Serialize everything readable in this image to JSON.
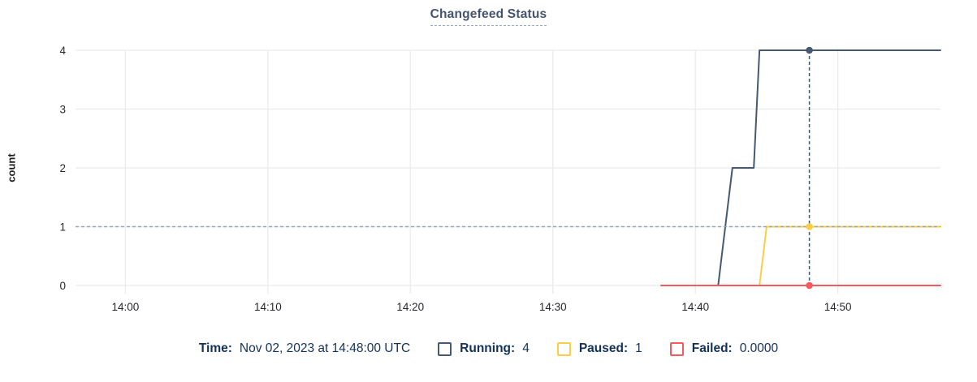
{
  "title": "Changefeed Status",
  "legend": {
    "time_label": "Time:",
    "time_value": "Nov 02, 2023 at 14:48:00 UTC",
    "items": [
      {
        "label": "Running:",
        "value": "4",
        "color": "#475872"
      },
      {
        "label": "Paused:",
        "value": "1",
        "color": "#ffcd44"
      },
      {
        "label": "Failed:",
        "value": "0.0000",
        "color": "#f8595f"
      }
    ]
  },
  "chart_data": {
    "type": "line",
    "title": "Changefeed Status",
    "xlabel": "",
    "ylabel": "count",
    "ylim": [
      0,
      4
    ],
    "y_ticks": [
      0,
      1,
      2,
      3,
      4
    ],
    "xlim_minutes_after_1400": [
      -3.5,
      57.2
    ],
    "x_ticks": [
      {
        "minutes": 0,
        "label": "14:00"
      },
      {
        "minutes": 10,
        "label": "14:10"
      },
      {
        "minutes": 20,
        "label": "14:20"
      },
      {
        "minutes": 30,
        "label": "14:30"
      },
      {
        "minutes": 40,
        "label": "14:40"
      },
      {
        "minutes": 50,
        "label": "14:50"
      }
    ],
    "grid": true,
    "legend_position": "bottom",
    "series": [
      {
        "name": "Running",
        "color": "#475872",
        "points": [
          [
            37.6,
            0
          ],
          [
            41.6,
            0
          ],
          [
            42.6,
            2
          ],
          [
            44.1,
            2
          ],
          [
            44.5,
            4
          ],
          [
            57.2,
            4
          ]
        ]
      },
      {
        "name": "Paused",
        "color": "#ffcd44",
        "points": [
          [
            37.6,
            0
          ],
          [
            44.5,
            0
          ],
          [
            45.0,
            1
          ],
          [
            57.2,
            1
          ]
        ]
      },
      {
        "name": "Failed",
        "color": "#f8595f",
        "points": [
          [
            37.6,
            0
          ],
          [
            57.2,
            0
          ]
        ]
      }
    ],
    "hover": {
      "time_label": "Nov 02, 2023 at 14:48:00 UTC",
      "x_minutes": 48,
      "crosshair_color": "#3f5a6d",
      "h_guide_y": 1,
      "h_guide_color": "#96a7b3",
      "dots": [
        {
          "series": "Running",
          "y": 4
        },
        {
          "series": "Paused",
          "y": 1
        },
        {
          "series": "Failed",
          "y": 0
        }
      ]
    },
    "colors": {
      "grid": "#ebebeb",
      "tick_text": "#26282d"
    }
  }
}
